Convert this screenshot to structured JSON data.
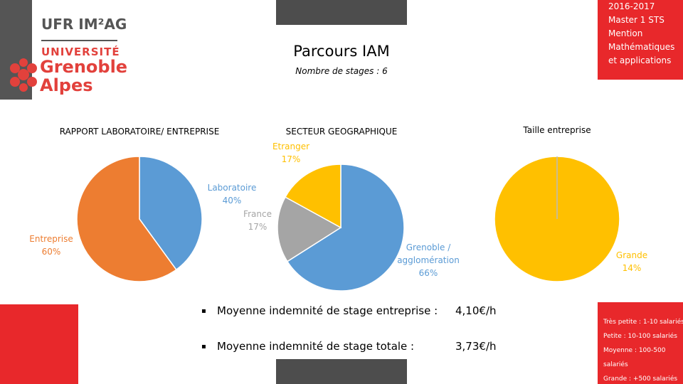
{
  "header": {
    "logo": {
      "ufr": "UFR IM²AG",
      "university": "UNIVERSITÉ",
      "city": "Grenoble",
      "region": "Alpes"
    },
    "title": "Parcours IAM",
    "subtitle": "Nombre de stages : 6",
    "program": [
      "2016-2017",
      "Master 1 STS",
      "Mention",
      "Mathématiques",
      "et applications"
    ]
  },
  "chart_data": [
    {
      "type": "pie",
      "title": "RAPPORT LABORATOIRE/ ENTREPRISE",
      "categories": [
        "Laboratoire",
        "Entreprise"
      ],
      "values": [
        40,
        60
      ],
      "value_labels": [
        "40%",
        "60%"
      ],
      "colors": [
        "#5b9bd5",
        "#ed7d31"
      ]
    },
    {
      "type": "pie",
      "title": "SECTEUR GEOGRAPHIQUE",
      "categories": [
        "Grenoble / agglomération",
        "France",
        "Etranger"
      ],
      "values": [
        66,
        17,
        17
      ],
      "value_labels": [
        "66%",
        "17%",
        "17%"
      ],
      "colors": [
        "#5b9bd5",
        "#a5a5a5",
        "#ffc000"
      ]
    },
    {
      "type": "pie",
      "title": "Taille entreprise",
      "categories": [
        "Grande"
      ],
      "values": [
        14
      ],
      "value_labels": [
        "14%"
      ],
      "colors": [
        "#ffc000"
      ]
    }
  ],
  "stats": [
    {
      "label": "Moyenne indemnité de stage entreprise :",
      "value": "4,10€/h"
    },
    {
      "label": "Moyenne indemnité de stage totale :",
      "value": "3,73€/h"
    }
  ],
  "size_legend": [
    "Très petite : 1-10 salariés",
    "Petite : 10-100 salariés",
    "Moyenne : 100-500 salariés",
    "Grande : +500 salariés"
  ]
}
